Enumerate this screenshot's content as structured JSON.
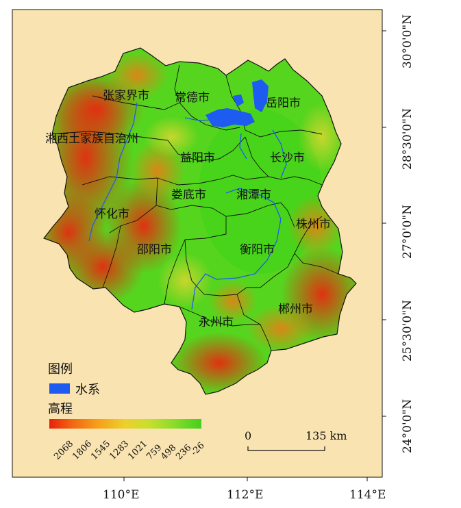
{
  "map": {
    "background_color": "#f9e3b0",
    "province_color_scale": [
      "#e8270f",
      "#f08a18",
      "#e6d832",
      "#9bd634",
      "#39d21c"
    ],
    "water_color": "#1e5bf0",
    "boundary_color": "#111111"
  },
  "city_labels": [
    {
      "id": "zhangjiajie",
      "text": "张家界市"
    },
    {
      "id": "changde",
      "text": "常德市"
    },
    {
      "id": "yueyang",
      "text": "岳阳市"
    },
    {
      "id": "xiangxi",
      "text": "湘西土家族自治州"
    },
    {
      "id": "yiyang",
      "text": "益阳市"
    },
    {
      "id": "changsha",
      "text": "长沙市"
    },
    {
      "id": "loudi",
      "text": "娄底市"
    },
    {
      "id": "xiangtan",
      "text": "湘潭市"
    },
    {
      "id": "huaihua",
      "text": "怀化市"
    },
    {
      "id": "zhuzhou",
      "text": "株州市"
    },
    {
      "id": "shaoyang",
      "text": "邵阳市"
    },
    {
      "id": "hengyang",
      "text": "衡阳市"
    },
    {
      "id": "yongzhou",
      "text": "永州市"
    },
    {
      "id": "chenzhou",
      "text": "郴州市"
    }
  ],
  "legend": {
    "title": "图例",
    "water_label": "水系",
    "elevation_title": "高程",
    "elevation_ticks": [
      "2068",
      "1806",
      "1545",
      "1283",
      "1021",
      "759",
      "498",
      "236",
      "-26"
    ],
    "gradient": [
      "#e8220c",
      "#f26a12",
      "#f5a31c",
      "#ecd12c",
      "#c6df2f",
      "#87db2b",
      "#44d01c"
    ]
  },
  "scale_bar": {
    "start": "0",
    "end": "135 km"
  },
  "axes": {
    "lon_ticks": [
      "110°E",
      "112°E",
      "114°E"
    ],
    "lat_ticks": [
      "30°0'0\"N",
      "28°30'0\"N",
      "27°0'0\"N",
      "25°30'0\"N",
      "24°0'0\"N"
    ]
  }
}
